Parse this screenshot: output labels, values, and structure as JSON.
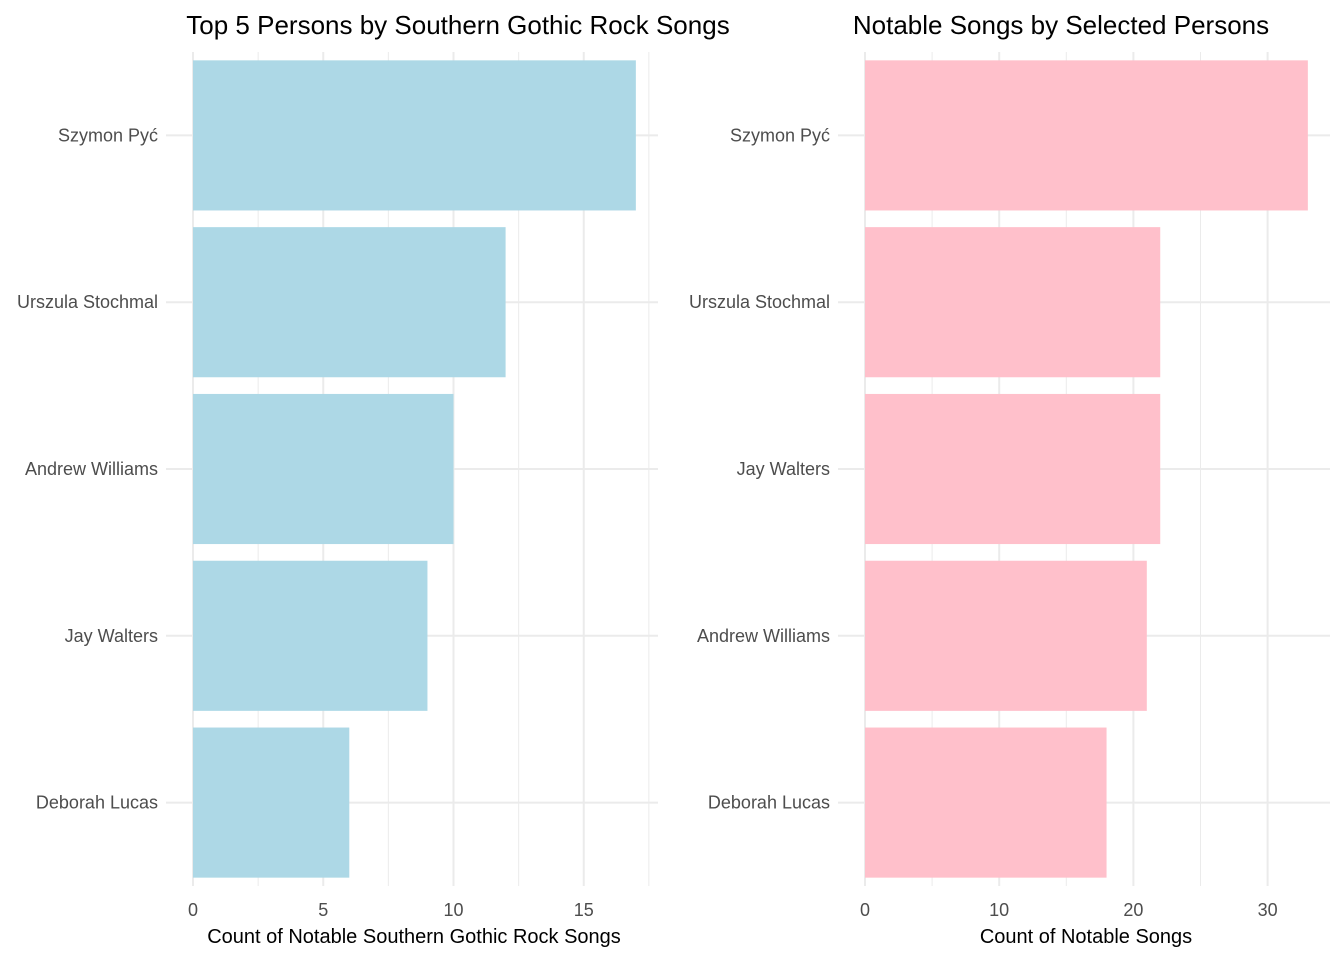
{
  "chart_data": [
    {
      "type": "bar",
      "orientation": "horizontal",
      "title": "Top 5 Persons by Southern Gothic Rock Songs",
      "xlabel": "Count of Notable Southern Gothic Rock Songs",
      "ylabel": "",
      "categories": [
        "Szymon Pyć",
        "Urszula Stochmal",
        "Andrew Williams",
        "Jay Walters",
        "Deborah Lucas"
      ],
      "values": [
        17,
        12,
        10,
        9,
        6
      ],
      "xlim": [
        0,
        17.85
      ],
      "ticks": [
        0,
        5,
        10,
        15
      ],
      "tick_labels": [
        "0",
        "5",
        "10",
        "15"
      ],
      "minor_ticks": [
        2.5,
        7.5,
        12.5,
        17.5
      ],
      "bar_color": "#add8e6",
      "grid": true,
      "legend": "none"
    },
    {
      "type": "bar",
      "orientation": "horizontal",
      "title": "Notable Songs by Selected Persons",
      "xlabel": "Count of Notable Songs",
      "ylabel": "",
      "categories": [
        "Szymon Pyć",
        "Urszula Stochmal",
        "Jay Walters",
        "Andrew Williams",
        "Deborah Lucas"
      ],
      "values": [
        33,
        22,
        22,
        21,
        18
      ],
      "xlim": [
        0,
        34.65
      ],
      "ticks": [
        0,
        10,
        20,
        30
      ],
      "tick_labels": [
        "0",
        "10",
        "20",
        "30"
      ],
      "minor_ticks": [
        5,
        15,
        25
      ],
      "bar_color": "#ffc0cb",
      "grid": true,
      "legend": "none"
    }
  ]
}
